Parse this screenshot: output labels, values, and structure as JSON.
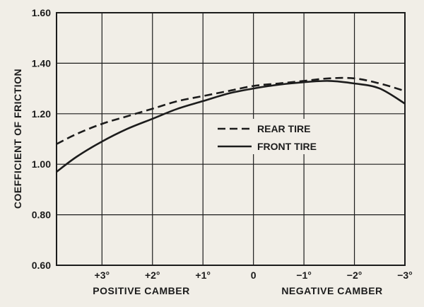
{
  "chart_data": {
    "type": "line",
    "title": "",
    "ylabel": "COEFFICIENT OF FRICTION",
    "xlabel_positive": "POSITIVE CAMBER",
    "xlabel_negative": "NEGATIVE CAMBER",
    "x_direction": "positive camber on the left, negative camber on the right",
    "xlim": [
      3.9,
      -3.0
    ],
    "ylim": [
      0.6,
      1.6
    ],
    "y_ticks": [
      0.6,
      0.8,
      1.0,
      1.2,
      1.4,
      1.6
    ],
    "y_tick_labels": [
      "0.60",
      "0.80",
      "1.00",
      "1.20",
      "1.40",
      "1.60"
    ],
    "x_ticks": [
      3,
      2,
      1,
      0,
      -1,
      -2,
      -3
    ],
    "x_tick_labels": [
      "+3°",
      "+2°",
      "+1°",
      "0",
      "−1°",
      "−2°",
      "−3°"
    ],
    "grid": true,
    "legend_position": "center-right",
    "series": [
      {
        "name": "REAR TIRE",
        "style": "dashed",
        "x": [
          3.9,
          3.5,
          3.0,
          2.5,
          2.0,
          1.5,
          1.0,
          0.5,
          0.0,
          -0.5,
          -1.0,
          -1.5,
          -2.0,
          -2.5,
          -3.0
        ],
        "y": [
          1.08,
          1.12,
          1.16,
          1.19,
          1.22,
          1.25,
          1.27,
          1.29,
          1.31,
          1.32,
          1.33,
          1.34,
          1.34,
          1.32,
          1.29
        ]
      },
      {
        "name": "FRONT TIRE",
        "style": "solid",
        "x": [
          3.9,
          3.5,
          3.0,
          2.5,
          2.0,
          1.5,
          1.0,
          0.5,
          0.0,
          -0.5,
          -1.0,
          -1.5,
          -2.0,
          -2.5,
          -3.0
        ],
        "y": [
          0.97,
          1.03,
          1.09,
          1.14,
          1.18,
          1.22,
          1.25,
          1.28,
          1.3,
          1.315,
          1.325,
          1.33,
          1.32,
          1.3,
          1.24
        ]
      }
    ]
  }
}
